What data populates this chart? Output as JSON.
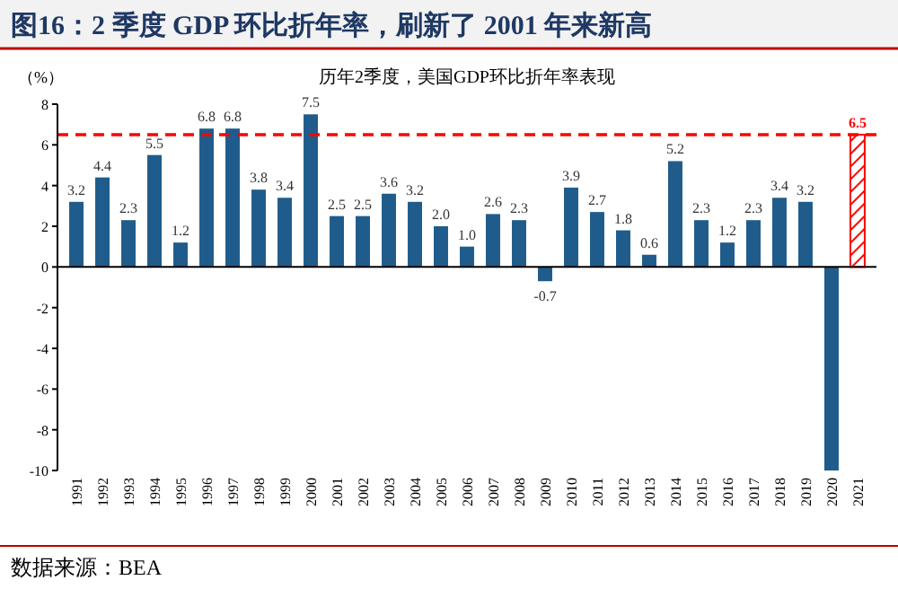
{
  "chart_data": {
    "type": "bar",
    "title": "图16：2 季度 GDP 环比折年率，刷新了 2001 年来新高",
    "subtitle": "历年2季度，美国GDP环比折年率表现",
    "ylabel": "（%）",
    "categories": [
      "1991",
      "1992",
      "1993",
      "1994",
      "1995",
      "1996",
      "1997",
      "1998",
      "1999",
      "2000",
      "2001",
      "2002",
      "2003",
      "2004",
      "2005",
      "2006",
      "2007",
      "2008",
      "2009",
      "2010",
      "2011",
      "2012",
      "2013",
      "2014",
      "2015",
      "2016",
      "2017",
      "2018",
      "2019",
      "2020",
      "2021"
    ],
    "values": [
      3.2,
      4.4,
      2.3,
      5.5,
      1.2,
      6.8,
      6.8,
      3.8,
      3.4,
      7.5,
      2.5,
      2.5,
      3.6,
      3.2,
      2.0,
      1.0,
      2.6,
      2.3,
      -0.7,
      3.9,
      2.7,
      1.8,
      0.6,
      5.2,
      2.3,
      1.2,
      2.3,
      3.4,
      3.2,
      -10,
      6.5
    ],
    "colors": [
      "#1f5c8b",
      "#1f5c8b",
      "#1f5c8b",
      "#1f5c8b",
      "#1f5c8b",
      "#1f5c8b",
      "#1f5c8b",
      "#1f5c8b",
      "#1f5c8b",
      "#1f5c8b",
      "#1f5c8b",
      "#1f5c8b",
      "#1f5c8b",
      "#1f5c8b",
      "#1f5c8b",
      "#1f5c8b",
      "#1f5c8b",
      "#1f5c8b",
      "#1f5c8b",
      "#1f5c8b",
      "#1f5c8b",
      "#1f5c8b",
      "#1f5c8b",
      "#1f5c8b",
      "#1f5c8b",
      "#1f5c8b",
      "#1f5c8b",
      "#1f5c8b",
      "#1f5c8b",
      "#1f5c8b",
      "#ff0000"
    ],
    "value_labels": [
      "3.2",
      "4.4",
      "2.3",
      "5.5",
      "1.2",
      "6.8",
      "6.8",
      "3.8",
      "3.4",
      "7.5",
      "2.5",
      "2.5",
      "3.6",
      "3.2",
      "2.0",
      "1.0",
      "2.6",
      "2.3",
      "-0.7",
      "3.9",
      "2.7",
      "1.8",
      "0.6",
      "5.2",
      "2.3",
      "1.2",
      "2.3",
      "3.4",
      "3.2",
      null,
      "6.5"
    ],
    "ylim": [
      -10,
      8
    ],
    "yticks": [
      -10,
      -8,
      -6,
      -4,
      -2,
      0,
      2,
      4,
      6,
      8
    ],
    "ref_lines": [
      {
        "axis": "y",
        "value": 6.5,
        "color": "#ff0000",
        "line_style": "dashed"
      }
    ],
    "annotations": [
      "数据来源：BEA"
    ]
  }
}
